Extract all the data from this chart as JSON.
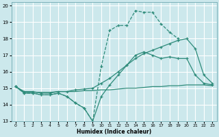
{
  "xlabel": "Humidex (Indice chaleur)",
  "bg_color": "#cce8ec",
  "grid_color": "#ffffff",
  "line_color": "#2e8b7a",
  "xlim": [
    -0.5,
    23.5
  ],
  "ylim": [
    13,
    20.2
  ],
  "yticks": [
    13,
    14,
    15,
    16,
    17,
    18,
    19,
    20
  ],
  "xticks": [
    0,
    1,
    2,
    3,
    4,
    5,
    6,
    7,
    8,
    9,
    10,
    11,
    12,
    13,
    14,
    15,
    16,
    17,
    18,
    19,
    20,
    21,
    22,
    23
  ],
  "line1_x": [
    0,
    1,
    2,
    3,
    4,
    5,
    6,
    7,
    8,
    9,
    10,
    11,
    12,
    13,
    14,
    15,
    16,
    17,
    18,
    19
  ],
  "line1_y": [
    15.1,
    14.7,
    14.7,
    14.6,
    14.6,
    14.7,
    14.5,
    14.1,
    13.8,
    13.0,
    16.3,
    18.5,
    18.8,
    18.8,
    19.7,
    19.6,
    19.6,
    18.9,
    18.4,
    18.0
  ],
  "line2_x": [
    0,
    1,
    2,
    3,
    4,
    5,
    6,
    7,
    8,
    9,
    10,
    11,
    12,
    13,
    14,
    15,
    16,
    17,
    18,
    19,
    20,
    21,
    22,
    23
  ],
  "line2_y": [
    15.1,
    14.75,
    14.75,
    14.75,
    14.75,
    14.8,
    14.8,
    14.8,
    14.85,
    14.85,
    14.9,
    14.9,
    14.95,
    15.0,
    15.0,
    15.05,
    15.1,
    15.1,
    15.15,
    15.15,
    15.2,
    15.2,
    15.2,
    15.15
  ],
  "line3_x": [
    0,
    1,
    2,
    3,
    4,
    5,
    6,
    7,
    8,
    9,
    10,
    11,
    12,
    13,
    14,
    15,
    16,
    17,
    18,
    19,
    20,
    21,
    22,
    23
  ],
  "line3_y": [
    15.1,
    14.7,
    14.7,
    14.6,
    14.6,
    14.7,
    14.5,
    14.1,
    13.8,
    13.0,
    14.5,
    15.2,
    15.8,
    16.4,
    17.0,
    17.2,
    17.0,
    16.8,
    16.9,
    16.8,
    16.8,
    15.8,
    15.3,
    15.2
  ],
  "line4_x": [
    0,
    1,
    2,
    3,
    4,
    5,
    6,
    7,
    8,
    9,
    10,
    11,
    12,
    13,
    14,
    15,
    16,
    17,
    18,
    19,
    20,
    21,
    22,
    23
  ],
  "line4_y": [
    15.1,
    14.8,
    14.8,
    14.7,
    14.7,
    14.8,
    14.8,
    14.9,
    14.95,
    15.0,
    15.3,
    15.6,
    16.0,
    16.4,
    16.8,
    17.1,
    17.3,
    17.5,
    17.7,
    17.9,
    18.0,
    17.4,
    15.8,
    15.3
  ]
}
